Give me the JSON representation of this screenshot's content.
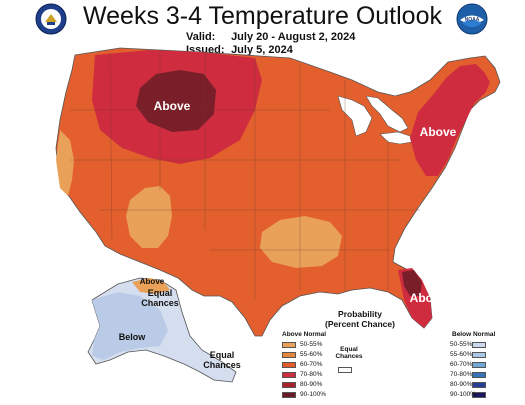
{
  "header": {
    "title": "Weeks 3-4 Temperature Outlook",
    "valid_key": "Valid:",
    "valid_value": "July 20 - August 2, 2024",
    "issued_key": "Issued:",
    "issued_value": "July 5, 2024"
  },
  "logos": {
    "left": "doc-seal",
    "right_text": "NOAA"
  },
  "map_labels": {
    "above_north": "Above",
    "above_east": "Above",
    "above_florida": "Above",
    "alaska_above": "Above",
    "alaska_equal_1": "Equal",
    "alaska_equal_2": "Chances",
    "alaska_below": "Below",
    "ak_south_equal_1": "Equal",
    "ak_south_equal_2": "Chances"
  },
  "legend": {
    "title_1": "Probability",
    "title_2": "(Percent Chance)",
    "above_header": "Above Normal",
    "below_header": "Below Normal",
    "equal_1": "Equal",
    "equal_2": "Chances",
    "above_rows": [
      {
        "label": "50-55%",
        "color": "#e9a15a"
      },
      {
        "label": "55-60%",
        "color": "#e2873c"
      },
      {
        "label": "60-70%",
        "color": "#e35a2b"
      },
      {
        "label": "70-80%",
        "color": "#cf2d3f"
      },
      {
        "label": "80-90%",
        "color": "#a8222e"
      },
      {
        "label": "90-100%",
        "color": "#6a1a24"
      }
    ],
    "below_rows": [
      {
        "label": "50-55%",
        "color": "#cbd7ec"
      },
      {
        "label": "55-60%",
        "color": "#a8c8e6"
      },
      {
        "label": "60-70%",
        "color": "#6fa8d6"
      },
      {
        "label": "70-80%",
        "color": "#3572b8"
      },
      {
        "label": "80-90%",
        "color": "#283c96"
      },
      {
        "label": "90-100%",
        "color": "#1a1660"
      }
    ]
  },
  "colors": {
    "base_orange": "#e35f2e",
    "dark_red": "#cf2d3f",
    "maroon": "#7a1f2a",
    "light_orange": "#e9a15a",
    "light_blue": "#b9cbe6",
    "pale_blue": "#d5deef"
  }
}
